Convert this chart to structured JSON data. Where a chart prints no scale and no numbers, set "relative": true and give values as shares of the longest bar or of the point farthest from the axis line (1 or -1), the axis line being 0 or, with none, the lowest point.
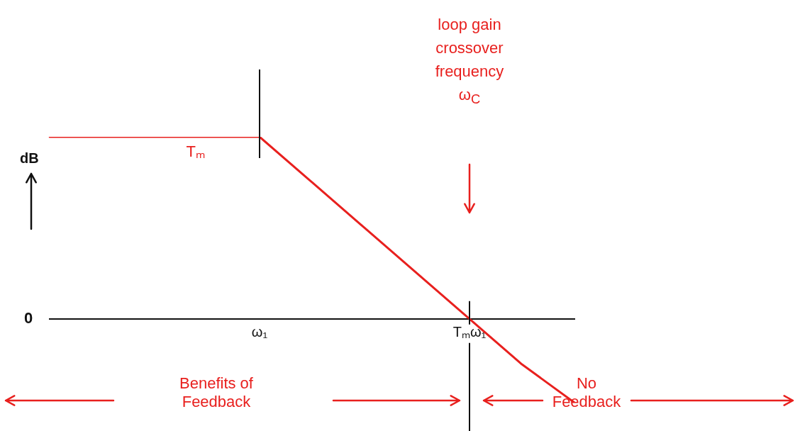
{
  "chart_data": {
    "type": "line",
    "relative": true,
    "ylabel": "dB",
    "categories": [
      null,
      null,
      null,
      null,
      "ω₁",
      null,
      null,
      null,
      "Tₘω₁",
      null,
      null
    ],
    "series": [
      {
        "color": "#e8201e",
        "values": [
          1,
          1,
          1,
          1,
          1,
          0.75,
          0.5,
          0.25,
          0,
          -0.25,
          -0.46
        ]
      }
    ],
    "ref_lines": [
      {
        "axis": "x",
        "value": "ω₁",
        "color": "#111111"
      },
      {
        "axis": "x",
        "value": "Tₘω₁",
        "color": "#111111"
      }
    ],
    "annotations": [
      "0",
      {
        "text": "Tₘ",
        "y": 1
      },
      "loop gain crossover frequency ω$_{C}$",
      "Benefits of Feedback",
      "No Feedback"
    ],
    "grid": false,
    "legend": false,
    "marker": "none",
    "line_style": "solid"
  }
}
